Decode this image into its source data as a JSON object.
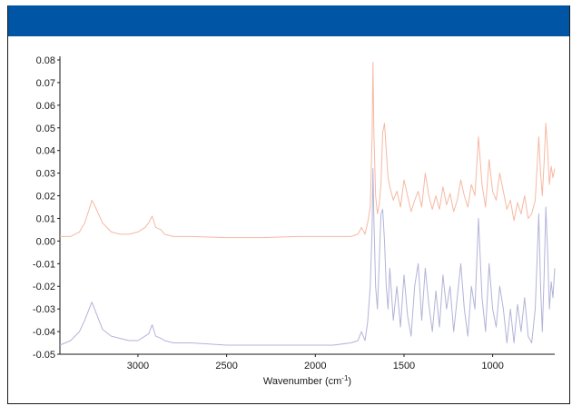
{
  "chart_data": {
    "type": "line",
    "title": "",
    "xlabel": "Wavenumber (cm-1)",
    "xlabel_main": "Wavenumber (cm",
    "xlabel_sup": "-1",
    "xlabel_tail": ")",
    "ylabel": "",
    "xlim": [
      3440,
      650
    ],
    "ylim": [
      -0.05,
      0.08
    ],
    "x_reversed": true,
    "x_ticks": [
      3000,
      2500,
      2000,
      1500,
      1000
    ],
    "x_tick_labels": [
      "3000",
      "2500",
      "2000",
      "1500",
      "1000"
    ],
    "y_ticks": [
      0.08,
      0.07,
      0.06,
      0.05,
      0.04,
      0.03,
      0.02,
      0.01,
      0.0,
      -0.01,
      -0.02,
      -0.03,
      -0.04,
      -0.05
    ],
    "y_tick_labels": [
      "0.08",
      "0.07",
      "0.06",
      "0.05",
      "0.04",
      "0.03",
      "0.02",
      "0.01",
      "0.00",
      "-0.01",
      "-0.02",
      "-0.03",
      "-0.04",
      "-0.05"
    ],
    "grid": false,
    "legend": "none",
    "series": [
      {
        "color": "#f5b9a3",
        "x": [
          3440,
          3380,
          3330,
          3300,
          3275,
          3260,
          3240,
          3200,
          3150,
          3100,
          3050,
          3000,
          2960,
          2940,
          2920,
          2900,
          2870,
          2850,
          2800,
          2700,
          2500,
          2300,
          2100,
          1900,
          1800,
          1760,
          1740,
          1720,
          1705,
          1690,
          1680,
          1675,
          1670,
          1660,
          1650,
          1640,
          1630,
          1620,
          1610,
          1600,
          1590,
          1580,
          1560,
          1540,
          1520,
          1500,
          1480,
          1460,
          1440,
          1420,
          1400,
          1380,
          1360,
          1340,
          1320,
          1300,
          1280,
          1260,
          1240,
          1220,
          1200,
          1180,
          1160,
          1140,
          1120,
          1100,
          1080,
          1060,
          1040,
          1020,
          1000,
          980,
          960,
          940,
          920,
          900,
          880,
          860,
          840,
          820,
          800,
          780,
          760,
          740,
          730,
          720,
          710,
          700,
          690,
          680,
          670,
          660,
          650
        ],
        "y": [
          0.002,
          0.002,
          0.004,
          0.008,
          0.014,
          0.018,
          0.015,
          0.008,
          0.004,
          0.003,
          0.003,
          0.004,
          0.006,
          0.008,
          0.011,
          0.006,
          0.005,
          0.003,
          0.002,
          0.002,
          0.0015,
          0.0015,
          0.002,
          0.002,
          0.002,
          0.003,
          0.006,
          0.003,
          0.008,
          0.015,
          0.045,
          0.079,
          0.048,
          0.02,
          0.012,
          0.016,
          0.025,
          0.048,
          0.052,
          0.04,
          0.028,
          0.024,
          0.018,
          0.022,
          0.015,
          0.027,
          0.02,
          0.013,
          0.018,
          0.022,
          0.015,
          0.03,
          0.02,
          0.014,
          0.02,
          0.014,
          0.024,
          0.016,
          0.021,
          0.013,
          0.018,
          0.027,
          0.02,
          0.015,
          0.025,
          0.02,
          0.046,
          0.025,
          0.015,
          0.036,
          0.022,
          0.018,
          0.03,
          0.022,
          0.014,
          0.018,
          0.009,
          0.017,
          0.012,
          0.02,
          0.01,
          0.012,
          0.018,
          0.046,
          0.03,
          0.02,
          0.035,
          0.052,
          0.04,
          0.025,
          0.033,
          0.028,
          0.032
        ]
      },
      {
        "color": "#b3b3d9",
        "x": [
          3440,
          3380,
          3330,
          3300,
          3275,
          3260,
          3240,
          3200,
          3150,
          3100,
          3050,
          3000,
          2960,
          2940,
          2920,
          2900,
          2870,
          2850,
          2800,
          2700,
          2500,
          2300,
          2100,
          1900,
          1800,
          1760,
          1740,
          1720,
          1705,
          1690,
          1680,
          1675,
          1670,
          1660,
          1650,
          1640,
          1630,
          1620,
          1610,
          1600,
          1590,
          1580,
          1560,
          1540,
          1520,
          1500,
          1480,
          1460,
          1440,
          1420,
          1400,
          1380,
          1360,
          1340,
          1320,
          1300,
          1280,
          1260,
          1240,
          1220,
          1200,
          1180,
          1160,
          1140,
          1120,
          1100,
          1080,
          1060,
          1040,
          1020,
          1000,
          980,
          960,
          940,
          920,
          900,
          880,
          860,
          840,
          820,
          800,
          780,
          760,
          740,
          730,
          720,
          710,
          700,
          690,
          680,
          670,
          660,
          650
        ],
        "y": [
          -0.046,
          -0.044,
          -0.04,
          -0.035,
          -0.03,
          -0.027,
          -0.031,
          -0.039,
          -0.042,
          -0.043,
          -0.044,
          -0.044,
          -0.042,
          -0.041,
          -0.037,
          -0.042,
          -0.043,
          -0.044,
          -0.045,
          -0.045,
          -0.046,
          -0.046,
          -0.046,
          -0.046,
          -0.045,
          -0.044,
          -0.04,
          -0.044,
          -0.036,
          -0.02,
          0.005,
          0.032,
          0.01,
          -0.02,
          -0.03,
          -0.01,
          0.012,
          0.014,
          0.0,
          -0.02,
          -0.03,
          -0.012,
          -0.035,
          -0.02,
          -0.038,
          -0.015,
          -0.033,
          -0.042,
          -0.02,
          -0.01,
          -0.035,
          -0.012,
          -0.028,
          -0.04,
          -0.022,
          -0.038,
          -0.015,
          -0.03,
          -0.02,
          -0.04,
          -0.025,
          -0.01,
          -0.03,
          -0.042,
          -0.02,
          -0.03,
          0.01,
          -0.025,
          -0.04,
          -0.01,
          -0.03,
          -0.038,
          -0.02,
          -0.03,
          -0.045,
          -0.03,
          -0.045,
          -0.028,
          -0.04,
          -0.025,
          -0.042,
          -0.045,
          -0.03,
          0.012,
          -0.02,
          -0.04,
          -0.015,
          0.015,
          -0.005,
          -0.03,
          -0.018,
          -0.025,
          -0.012
        ]
      }
    ]
  }
}
